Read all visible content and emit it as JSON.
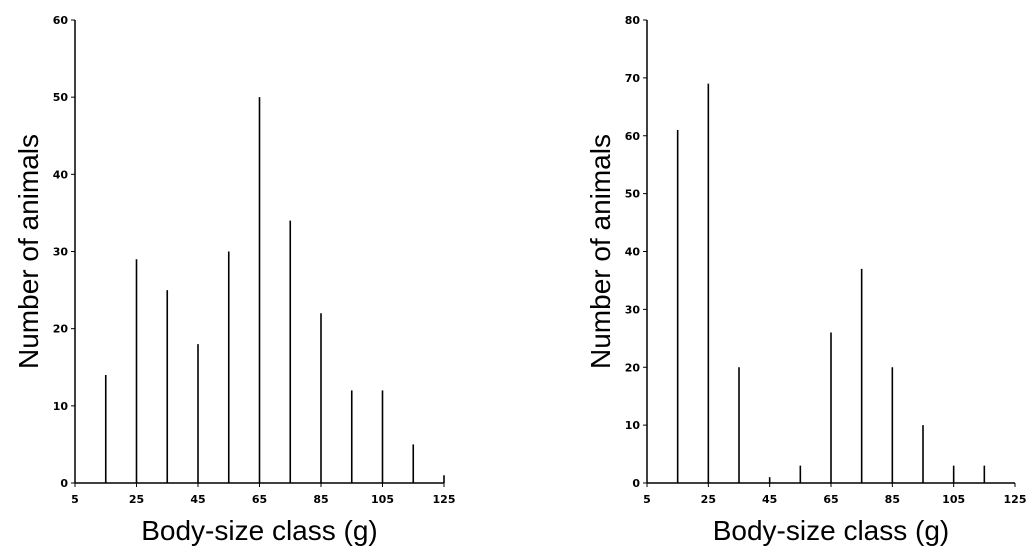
{
  "chart_data": [
    {
      "type": "bar",
      "title": "",
      "xlabel": "Body-size class (g)",
      "ylabel": "Number of animals",
      "xlim": [
        5,
        125
      ],
      "ylim": [
        0,
        60
      ],
      "xticks": [
        5,
        25,
        45,
        65,
        85,
        105,
        125
      ],
      "yticks": [
        0,
        10,
        20,
        30,
        40,
        50,
        60
      ],
      "x": [
        15,
        25,
        35,
        45,
        55,
        65,
        75,
        85,
        95,
        105,
        115,
        125
      ],
      "values": [
        14,
        29,
        25,
        18,
        30,
        50,
        34,
        22,
        12,
        12,
        5,
        1
      ]
    },
    {
      "type": "bar",
      "title": "",
      "xlabel": "Body-size class (g)",
      "ylabel": "Number of animals",
      "xlim": [
        5,
        125
      ],
      "ylim": [
        0,
        80
      ],
      "xticks": [
        5,
        25,
        45,
        65,
        85,
        105,
        125
      ],
      "yticks": [
        0,
        10,
        20,
        30,
        40,
        50,
        60,
        70,
        80
      ],
      "x": [
        15,
        25,
        35,
        45,
        55,
        65,
        75,
        85,
        95,
        105,
        115
      ],
      "values": [
        61,
        69,
        20,
        1,
        3,
        26,
        37,
        20,
        10,
        3,
        3
      ]
    }
  ]
}
